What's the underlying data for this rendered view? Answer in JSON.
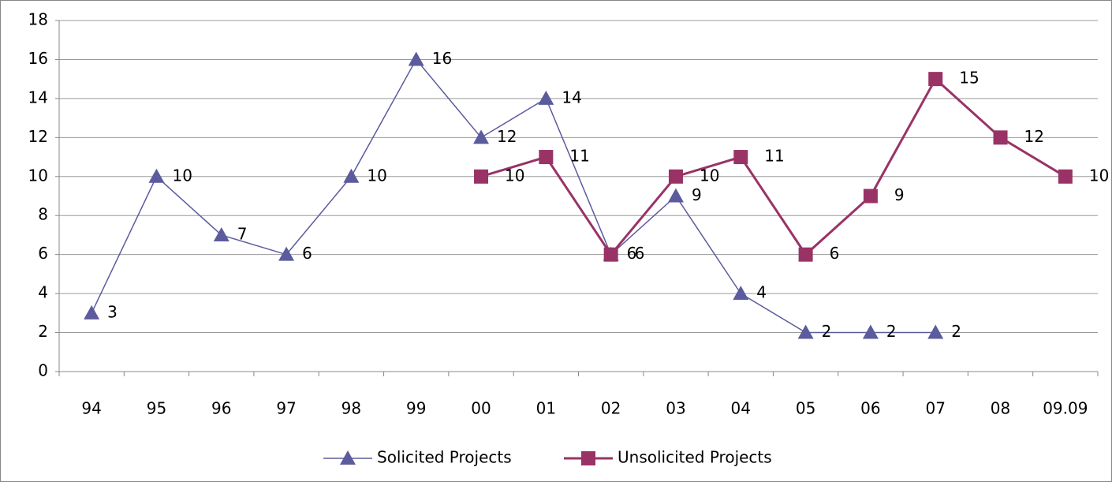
{
  "chart_data": {
    "type": "line",
    "categories": [
      "94",
      "95",
      "96",
      "97",
      "98",
      "99",
      "00",
      "01",
      "02",
      "03",
      "04",
      "05",
      "06",
      "07",
      "08",
      "09.09"
    ],
    "series": [
      {
        "name": "Solicited Projects",
        "color": "#5b5b9e",
        "marker": "triangle",
        "values": [
          3,
          10,
          7,
          6,
          10,
          16,
          12,
          14,
          6,
          9,
          4,
          2,
          2,
          2,
          null,
          null
        ]
      },
      {
        "name": "Unsolicited Projects",
        "color": "#993366",
        "marker": "square",
        "values": [
          null,
          null,
          null,
          null,
          null,
          null,
          10,
          11,
          6,
          10,
          11,
          6,
          9,
          15,
          12,
          10
        ]
      }
    ],
    "ylim": [
      0,
      18
    ],
    "yticks": [
      0,
      2,
      4,
      6,
      8,
      10,
      12,
      14,
      16,
      18
    ],
    "grid": true,
    "legend": "bottom"
  }
}
